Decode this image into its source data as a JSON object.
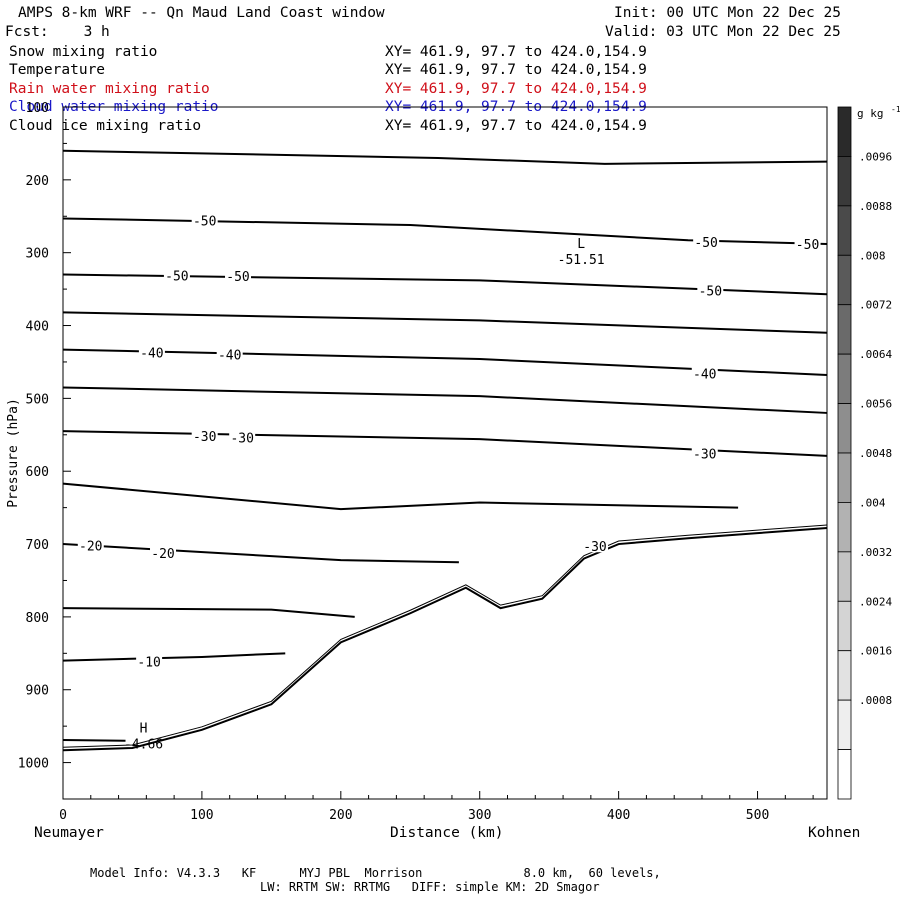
{
  "header": {
    "title": "AMPS 8-km WRF -- Qn Maud Land Coast window",
    "init": "Init: 00 UTC Mon 22 Dec 25",
    "forecast": "Fcst:    3 h",
    "valid": "Valid: 03 UTC Mon 22 Dec 25"
  },
  "fields": [
    {
      "name": "Snow mixing ratio",
      "xy": "XY= 461.9, 97.7 to 424.0,154.9",
      "color": "#000000"
    },
    {
      "name": "Temperature",
      "xy": "XY= 461.9, 97.7 to 424.0,154.9",
      "color": "#000000"
    },
    {
      "name": "Rain water mixing ratio",
      "xy": "XY= 461.9, 97.7 to 424.0,154.9",
      "color": "#d0101a"
    },
    {
      "name": "Cloud water mixing ratio",
      "xy": "XY= 461.9, 97.7 to 424.0,154.9",
      "color": "#1a18c8"
    },
    {
      "name": "Cloud ice mixing ratio",
      "xy": "XY= 461.9, 97.7 to 424.0,154.9",
      "color": "#000000"
    }
  ],
  "footer": {
    "line1": "Model Info: V4.3.3   KF      MYJ PBL  Morrison              8.0 km,  60 levels,",
    "line2": "LW: RRTM SW: RRTMG   DIFF: simple KM: 2D Smagor"
  },
  "chart_data": {
    "type": "cross-section-contour",
    "xlabel": "Distance (km)",
    "ylabel": "Pressure (hPa)",
    "xlim": [
      0,
      550
    ],
    "ylim": [
      1050,
      100
    ],
    "x_ticks": [
      0,
      100,
      200,
      300,
      400,
      500
    ],
    "y_ticks": [
      100,
      200,
      300,
      400,
      500,
      600,
      700,
      800,
      900,
      1000
    ],
    "left_endpoint": "Neumayer",
    "right_endpoint": "Kohnen",
    "colorbar": {
      "unit": "g kg",
      "unit_exponent": "-1",
      "labels": [
        ".0096",
        ".0088",
        ".008",
        ".0072",
        ".0064",
        ".0056",
        ".0048",
        ".004",
        ".0032",
        ".0024",
        ".0016",
        ".0008"
      ],
      "levels": [
        0.0104,
        0.0096,
        0.0088,
        0.008,
        0.0072,
        0.0064,
        0.0056,
        0.0048,
        0.004,
        0.0032,
        0.0024,
        0.0016,
        0.0008,
        0.0
      ],
      "shades": [
        "#2a2a2a",
        "#3a3a3a",
        "#4a4a4a",
        "#5a5a5a",
        "#6a6a6a",
        "#7c7c7c",
        "#8e8e8e",
        "#a0a0a0",
        "#b2b2b2",
        "#c4c4c4",
        "#d4d4d4",
        "#e2e2e2",
        "#eeeeee",
        "#ffffff"
      ]
    },
    "extrema": [
      {
        "kind": "L",
        "value": "-51.51",
        "x": 373,
        "p": 310
      },
      {
        "kind": "H",
        "value": "-4.66",
        "x": 58,
        "p": 975
      }
    ],
    "temperature_contour_labels": [
      {
        "label": "-50",
        "x": 102,
        "p": 256
      },
      {
        "label": "-50",
        "x": 463,
        "p": 285
      },
      {
        "label": "-50",
        "x": 536,
        "p": 288
      },
      {
        "label": "-50",
        "x": 82,
        "p": 331
      },
      {
        "label": "-50",
        "x": 126,
        "p": 332
      },
      {
        "label": "-50",
        "x": 466,
        "p": 352
      },
      {
        "label": "-40",
        "x": 64,
        "p": 437
      },
      {
        "label": "-40",
        "x": 120,
        "p": 440
      },
      {
        "label": "-40",
        "x": 462,
        "p": 466
      },
      {
        "label": "-30",
        "x": 102,
        "p": 552
      },
      {
        "label": "-30",
        "x": 129,
        "p": 554
      },
      {
        "label": "-30",
        "x": 462,
        "p": 576
      },
      {
        "label": "-30",
        "x": 383,
        "p": 703
      },
      {
        "label": "-20",
        "x": 20,
        "p": 702
      },
      {
        "label": "-20",
        "x": 72,
        "p": 712
      },
      {
        "label": "-10",
        "x": 62,
        "p": 861
      }
    ],
    "temperature_lines_pressure_at_x": [
      {
        "x": [
          0,
          270,
          390,
          550
        ],
        "p": [
          160,
          170,
          178,
          175
        ]
      },
      {
        "x": [
          0,
          250,
          450,
          550
        ],
        "p": [
          253,
          262,
          283,
          288
        ]
      },
      {
        "x": [
          0,
          300,
          550
        ],
        "p": [
          330,
          338,
          357
        ]
      },
      {
        "x": [
          0,
          300,
          550
        ],
        "p": [
          382,
          393,
          410
        ]
      },
      {
        "x": [
          0,
          300,
          550
        ],
        "p": [
          433,
          446,
          468
        ]
      },
      {
        "x": [
          0,
          300,
          550
        ],
        "p": [
          485,
          497,
          520
        ]
      },
      {
        "x": [
          0,
          300,
          550
        ],
        "p": [
          545,
          556,
          579
        ]
      },
      {
        "x": [
          0,
          200,
          300,
          486
        ],
        "p": [
          617,
          652,
          643,
          650
        ]
      },
      {
        "x": [
          0,
          200,
          285
        ],
        "p": [
          700,
          722,
          725
        ]
      },
      {
        "x": [
          0,
          150,
          210
        ],
        "p": [
          788,
          790,
          800
        ]
      },
      {
        "x": [
          0,
          100,
          160
        ],
        "p": [
          860,
          855,
          850
        ]
      },
      {
        "x": [
          0,
          45
        ],
        "p": [
          969,
          970
        ]
      }
    ],
    "terrain_surface": {
      "x": [
        0,
        50,
        100,
        150,
        200,
        250,
        290,
        315,
        345,
        375,
        400,
        450,
        500,
        550
      ],
      "p": [
        983,
        980,
        955,
        920,
        835,
        795,
        760,
        788,
        775,
        720,
        700,
        692,
        685,
        678
      ]
    }
  }
}
